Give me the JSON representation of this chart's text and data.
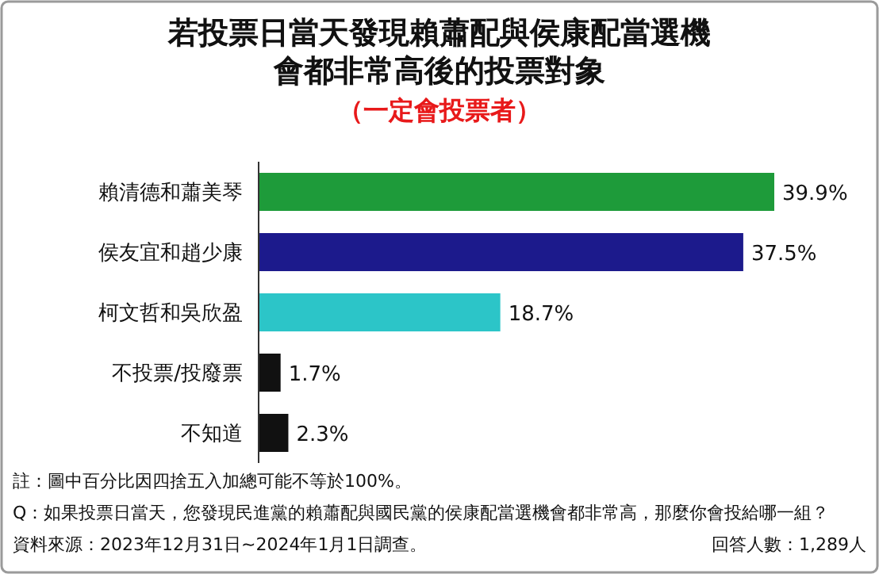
{
  "chart_data": {
    "type": "bar",
    "orientation": "horizontal",
    "title": "若投票日當天發現賴蕭配與侯康配當選機會都非常高後的投票對象",
    "subtitle": "（一定會投票者）",
    "categories": [
      "賴清德和蕭美琴",
      "侯友宜和趙少康",
      "柯文哲和吳欣盈",
      "不投票/投廢票",
      "不知道"
    ],
    "values": [
      39.9,
      37.5,
      18.7,
      1.7,
      2.3
    ],
    "value_labels": [
      "39.9%",
      "37.5%",
      "18.7%",
      "1.7%",
      "2.3%"
    ],
    "colors": [
      "#1e9b3a",
      "#1c1a8c",
      "#2cc5c8",
      "#111111",
      "#111111"
    ],
    "annotations": [
      "註：圖中百分比因四捨五入加總可能不等於100%。",
      "Q：如果投票日當天，您發現民進黨的賴蕭配與國民黨的侯康配當選機會都非常高，那麼你會投給哪一組？",
      "資料來源：2023年12月31日~2024年1月1日調查。",
      "回答人數：1,289人"
    ]
  }
}
